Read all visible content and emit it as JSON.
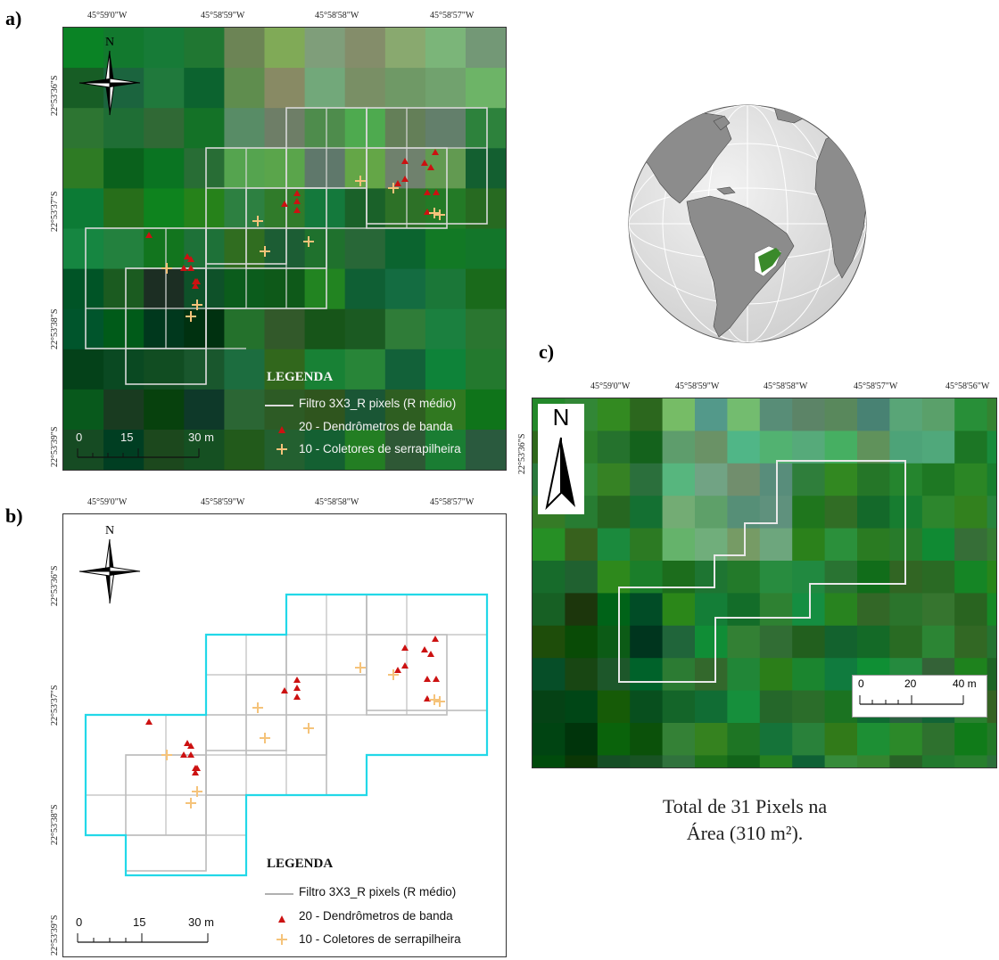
{
  "panels": {
    "a": {
      "label": "a)"
    },
    "b": {
      "label": "b)"
    },
    "c": {
      "label": "c)"
    }
  },
  "lon_ticks": [
    "45°59'0\"W",
    "45°58'59\"W",
    "45°58'58\"W",
    "45°58'57\"W"
  ],
  "lon_ticks_c": [
    "45°59'0\"W",
    "45°58'59\"W",
    "45°58'58\"W",
    "45°58'57\"W",
    "45°58'56\"W"
  ],
  "lat_ticks": [
    "22°53'36\"S",
    "22°53'37\"S",
    "22°53'38\"S",
    "22°53'39\"S"
  ],
  "lat_ticks_c": [
    "22°53'36\"S"
  ],
  "north_label": "N",
  "legend": {
    "title": "LEGENDA",
    "items": [
      {
        "label": "Filtro 3X3_R pixels (R médio)",
        "symbol": "line"
      },
      {
        "label": "20 - Dendrômetros de banda",
        "symbol": "triangle",
        "color": "#cc1111"
      },
      {
        "label": "10 - Coletores de serrapilheira",
        "symbol": "plus",
        "color": "#f5c37a"
      }
    ]
  },
  "scale_ab": {
    "labels": [
      "0",
      "15",
      "30 m"
    ]
  },
  "scale_c": {
    "labels": [
      "0",
      "20",
      "40 m"
    ]
  },
  "caption": {
    "line1": "Total de 31 Pixels na",
    "line2": "Área (310 m²)."
  },
  "colors": {
    "filter_line_a": "#d8d8d8",
    "filter_line_b": "#bdbdbd",
    "outline_b": "#22d8e8",
    "dendrometer": "#cc1111",
    "collector": "#f5c37a",
    "highlight_region": "#3a8a2a"
  }
}
